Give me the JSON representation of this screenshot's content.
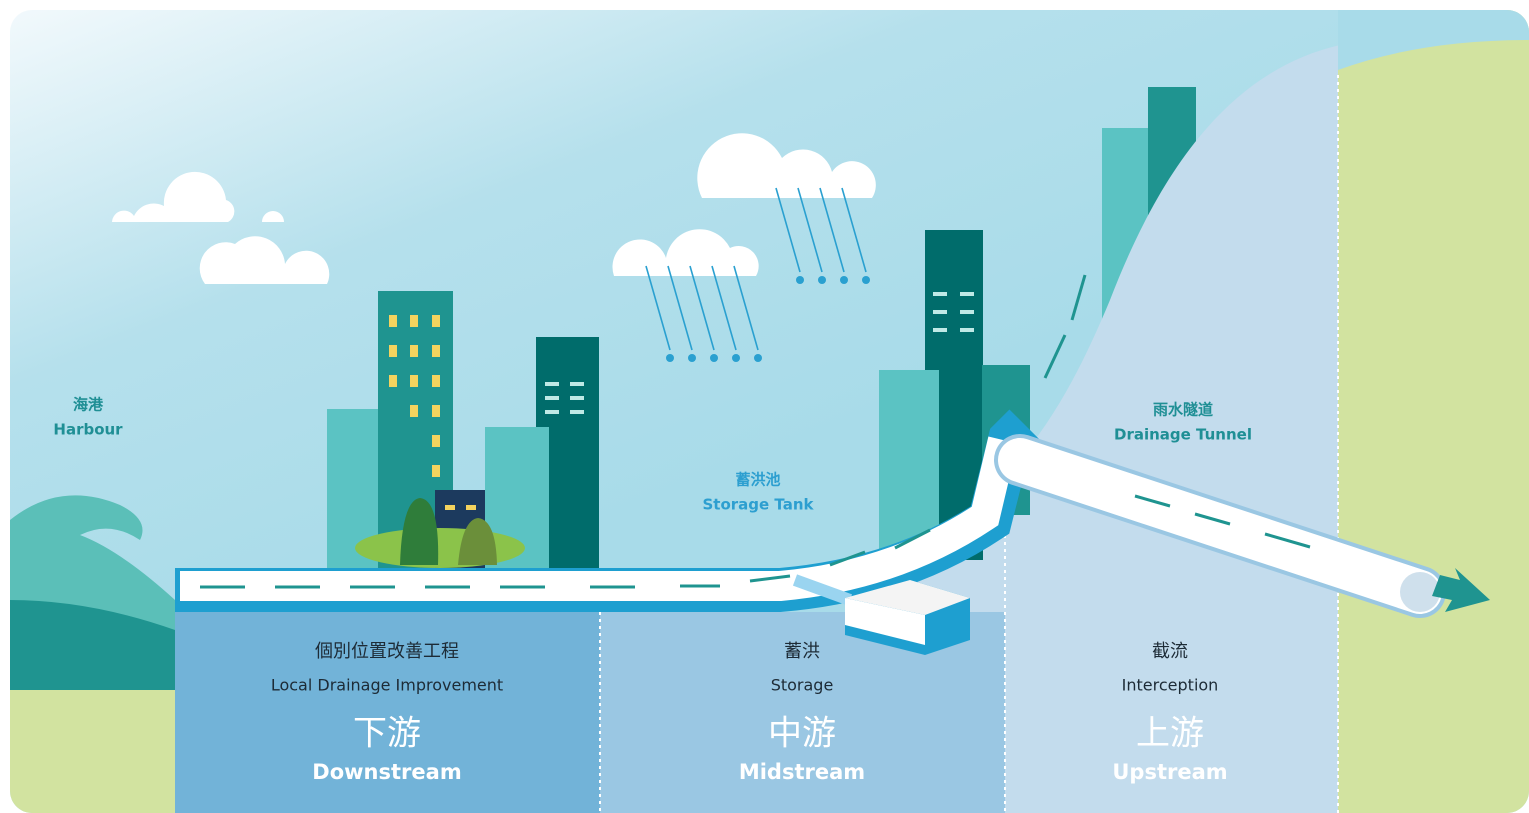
{
  "labels": [
    {
      "zh": "海港",
      "en": "Harbour"
    },
    {
      "zh": "蓄洪池",
      "en": "Storage Tank"
    },
    {
      "zh": "雨水隧道",
      "en": "Drainage Tunnel"
    }
  ],
  "zones": [
    {
      "zh": "個別位置改善工程",
      "en": "Local Drainage Improvement",
      "stream_zh": "下游",
      "stream_en": "Downstream"
    },
    {
      "zh": "蓄洪",
      "en": "Storage",
      "stream_zh": "中游",
      "stream_en": "Midstream"
    },
    {
      "zh": "截流",
      "en": "Interception",
      "stream_zh": "上游",
      "stream_en": "Upstream"
    }
  ]
}
